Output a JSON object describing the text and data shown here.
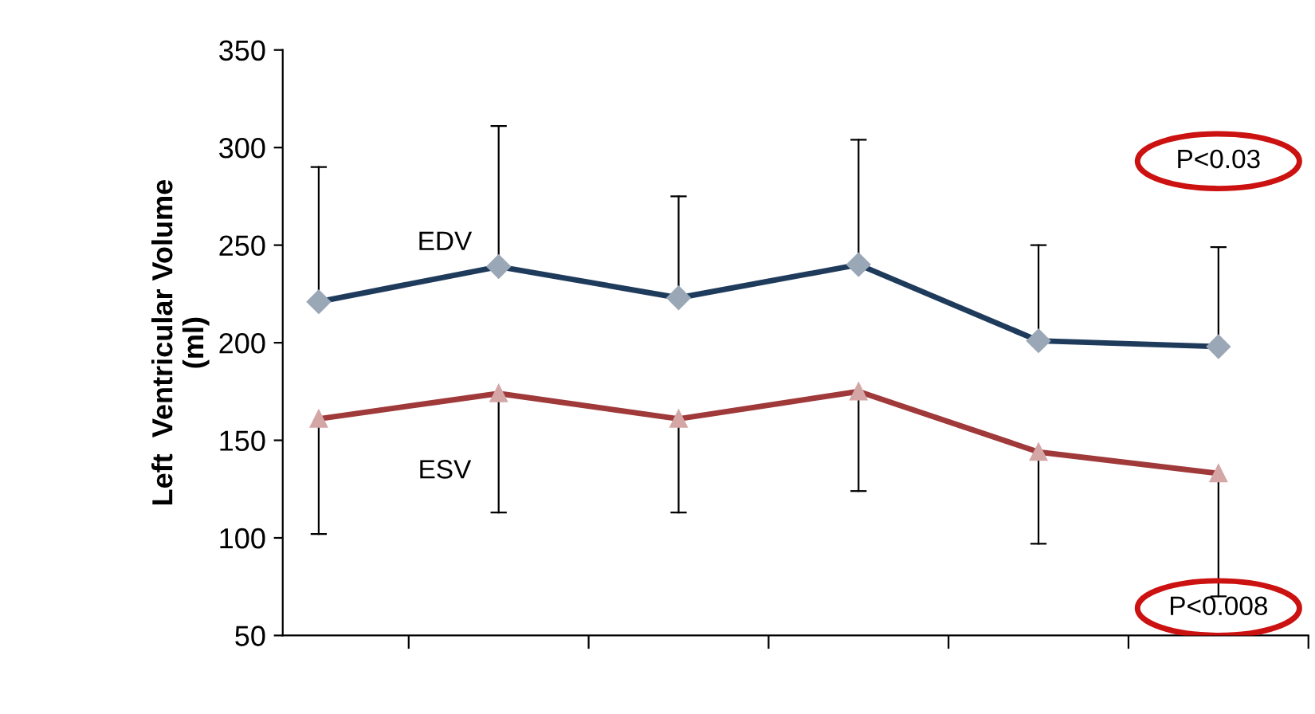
{
  "chart_data": {
    "type": "line",
    "ylabel": "Left  Ventricular Volume\n(ml)",
    "categories": [
      null,
      null,
      null,
      null,
      null,
      null
    ],
    "series": [
      {
        "name": "EDV",
        "color": "#1f3b5c",
        "values": [
          221,
          239,
          223,
          240,
          201,
          198
        ],
        "marker": "diamond",
        "errors": [
          [
            221,
            290
          ],
          [
            239,
            311
          ],
          [
            223,
            275
          ],
          [
            240,
            304
          ],
          [
            201,
            250
          ],
          [
            198,
            249
          ]
        ]
      },
      {
        "name": "ESV",
        "color": "#a0393a",
        "values": [
          161,
          174,
          161,
          175,
          144,
          133
        ],
        "marker": "triangle",
        "errors": [
          [
            102,
            161
          ],
          [
            113,
            174
          ],
          [
            113,
            161
          ],
          [
            124,
            175
          ],
          [
            97,
            144
          ],
          [
            70,
            133
          ]
        ]
      }
    ],
    "ylim": [
      50,
      350
    ],
    "yticks": [
      50,
      100,
      150,
      200,
      250,
      300,
      350
    ],
    "grid": false,
    "legend": false,
    "annotations": [
      "P<0.03",
      "P<0.008"
    ]
  }
}
